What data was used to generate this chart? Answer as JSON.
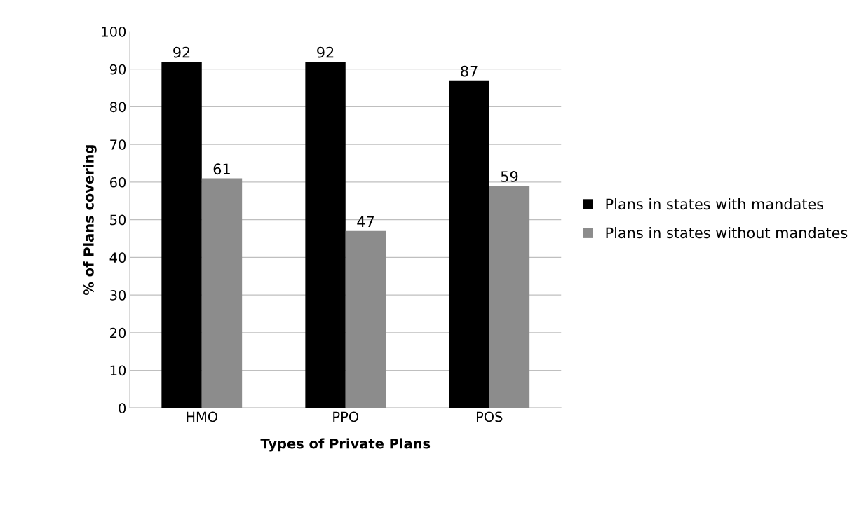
{
  "chart_data": {
    "type": "bar",
    "xlabel": "Types of Private Plans",
    "ylabel": "% of Plans covering",
    "categories": [
      "HMO",
      "PPO",
      "POS"
    ],
    "series": [
      {
        "name": "Plans in states with mandates",
        "color": "#000000",
        "values": [
          92,
          92,
          87
        ]
      },
      {
        "name": "Plans in states without mandates",
        "color": "#8c8c8c",
        "values": [
          61,
          47,
          59
        ]
      }
    ],
    "ylim": [
      0,
      100
    ],
    "yticks": [
      0,
      10,
      20,
      30,
      40,
      50,
      60,
      70,
      80,
      90,
      100
    ],
    "grid": "y",
    "legend": "right",
    "data_labels": true
  }
}
